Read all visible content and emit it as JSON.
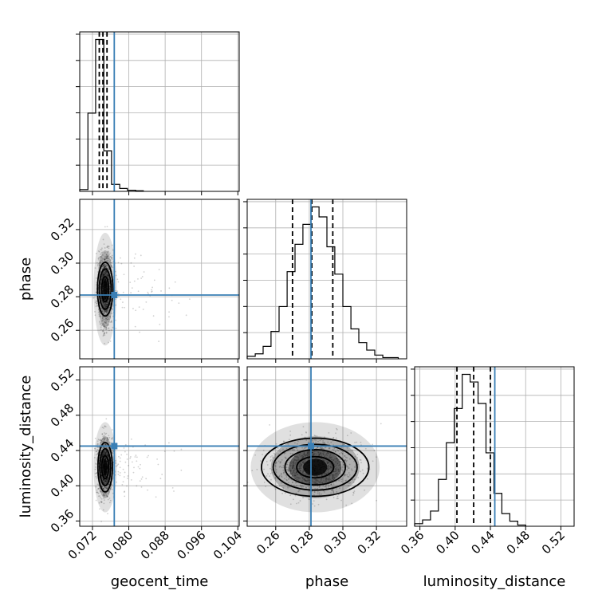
{
  "chart_data": {
    "type": "corner",
    "parameters": [
      "geocent_time",
      "phase",
      "luminosity_distance"
    ],
    "grid": true,
    "truth_color": "#3a7fb5",
    "truths": {
      "geocent_time": 0.0768,
      "phase": 0.281,
      "luminosity_distance": 0.445
    },
    "quantiles": {
      "geocent_time": [
        0.0735,
        0.0743,
        0.0752
      ],
      "phase": [
        0.27,
        0.2815,
        0.294
      ],
      "luminosity_distance": [
        0.402,
        0.421,
        0.44
      ]
    },
    "ranges": {
      "geocent_time": [
        0.0692,
        0.1043
      ],
      "phase": [
        0.243,
        0.338
      ],
      "luminosity_distance": [
        0.354,
        0.535
      ]
    },
    "ticks": {
      "geocent_time": {
        "values": [
          0.072,
          0.08,
          0.088,
          0.096,
          0.104
        ],
        "labels": [
          "0.072",
          "0.080",
          "0.088",
          "0.096",
          "0.104"
        ]
      },
      "phase": {
        "values": [
          0.26,
          0.28,
          0.3,
          0.32
        ],
        "labels": [
          "0.26",
          "0.28",
          "0.30",
          "0.32"
        ]
      },
      "luminosity_distance": {
        "values": [
          0.36,
          0.4,
          0.44,
          0.48,
          0.52
        ],
        "labels": [
          "0.36",
          "0.40",
          "0.44",
          "0.48",
          "0.52"
        ]
      }
    },
    "histograms": {
      "geocent_time": {
        "edges": [
          0.0692,
          0.071,
          0.0727,
          0.0745,
          0.0762,
          0.078,
          0.0797,
          0.0815,
          0.0832
        ],
        "counts": [
          3,
          135,
          262,
          70,
          12,
          5,
          2,
          1
        ]
      },
      "phase": {
        "edges": [
          0.243,
          0.2478,
          0.2525,
          0.2572,
          0.262,
          0.2668,
          0.2715,
          0.2762,
          0.281,
          0.2858,
          0.2905,
          0.2952,
          0.3,
          0.3048,
          0.3095,
          0.3142,
          0.319,
          0.3238,
          0.3285,
          0.333
        ],
        "counts": [
          2,
          4,
          10,
          22,
          42,
          70,
          92,
          108,
          122,
          114,
          90,
          68,
          42,
          24,
          13,
          7,
          3,
          1,
          1
        ]
      },
      "luminosity_distance": {
        "edges": [
          0.354,
          0.363,
          0.372,
          0.381,
          0.39,
          0.399,
          0.408,
          0.417,
          0.426,
          0.435,
          0.444,
          0.453,
          0.462,
          0.471,
          0.48
        ],
        "counts": [
          2,
          5,
          12,
          37,
          66,
          93,
          120,
          114,
          97,
          58,
          26,
          10,
          4,
          1
        ]
      }
    },
    "scatter_2d": [
      {
        "x": "geocent_time",
        "y": "phase",
        "center": [
          0.0748,
          0.2845
        ],
        "spread": [
          0.0008,
          0.0105
        ],
        "contours": [
          [
            0.00075,
            0.0075
          ],
          [
            0.0013,
            0.012
          ],
          [
            0.0017,
            0.016
          ]
        ]
      },
      {
        "x": "geocent_time",
        "y": "luminosity_distance",
        "center": [
          0.0748,
          0.421
        ],
        "spread": [
          0.0008,
          0.016
        ],
        "contours": [
          [
            0.00075,
            0.013
          ],
          [
            0.0012,
            0.021
          ],
          [
            0.0016,
            0.028
          ]
        ]
      },
      {
        "x": "phase",
        "y": "luminosity_distance",
        "center": [
          0.2835,
          0.421
        ],
        "spread": [
          0.012,
          0.016
        ],
        "contours": [
          [
            0.011,
            0.012
          ],
          [
            0.018,
            0.02
          ],
          [
            0.025,
            0.026
          ],
          [
            0.032,
            0.033
          ]
        ]
      }
    ],
    "xlabels": [
      "geocent_time",
      "phase",
      "luminosity_distance"
    ],
    "ylabels": [
      "",
      "phase",
      "luminosity_distance"
    ]
  }
}
